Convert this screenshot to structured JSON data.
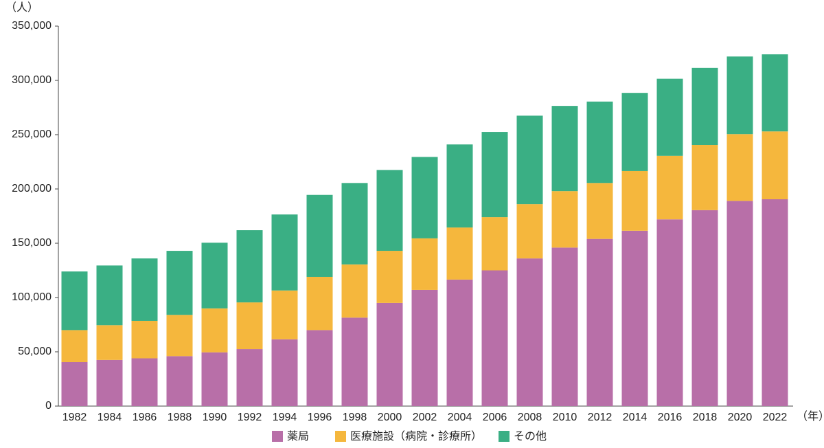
{
  "chart_data": {
    "type": "stacked_bar",
    "y_unit": "（人）",
    "x_unit": "（年）",
    "categories": [
      "1982",
      "1984",
      "1986",
      "1988",
      "1990",
      "1992",
      "1994",
      "1996",
      "1998",
      "2000",
      "2002",
      "2004",
      "2006",
      "2008",
      "2010",
      "2012",
      "2014",
      "2016",
      "2018",
      "2020",
      "2022"
    ],
    "series": [
      {
        "name": "薬局",
        "color": "#b86fa8",
        "values": [
          40500,
          42500,
          44000,
          46000,
          49500,
          52500,
          61500,
          70000,
          81500,
          95000,
          107000,
          116500,
          125000,
          136000,
          146000,
          154000,
          161500,
          172000,
          180500,
          189000,
          190500
        ]
      },
      {
        "name": "医療施設（病院・診療所）",
        "color": "#f5b73d",
        "values": [
          29500,
          32000,
          34500,
          38000,
          40500,
          43000,
          45000,
          49000,
          49000,
          48000,
          47500,
          48000,
          49000,
          50000,
          52000,
          51500,
          55000,
          58500,
          60000,
          61500,
          62500
        ]
      },
      {
        "name": "その他",
        "color": "#3aaf84",
        "values": [
          54000,
          55000,
          57500,
          59000,
          60500,
          66500,
          70000,
          75500,
          75000,
          74500,
          75000,
          76500,
          78500,
          81500,
          78500,
          75000,
          72000,
          71000,
          71000,
          71500,
          71000
        ]
      }
    ],
    "ylim": [
      0,
      350000
    ],
    "yticks": [
      0,
      {
        "value": 50000,
        "label": "50,000"
      },
      {
        "value": 100000,
        "label": "100,000"
      },
      {
        "value": 150000,
        "label": "150,000"
      },
      {
        "value": 200000,
        "label": "200,000"
      },
      {
        "value": 250000,
        "label": "250,000"
      },
      {
        "value": 300000,
        "label": "300,000"
      },
      {
        "value": 350000,
        "label": "350,000"
      }
    ],
    "grid": false,
    "legend": "bottom"
  }
}
